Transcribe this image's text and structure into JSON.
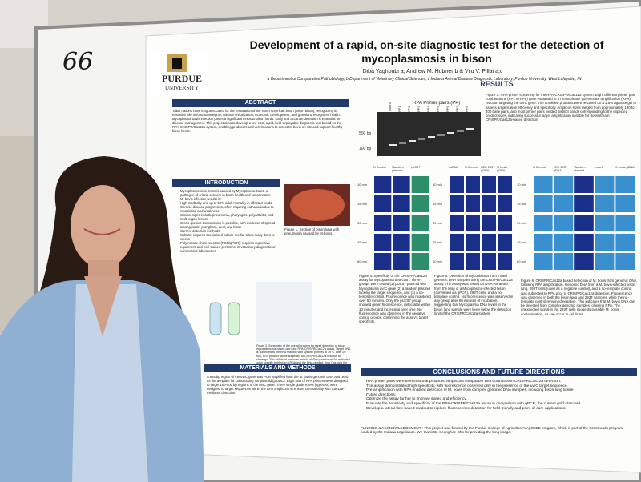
{
  "whiteboard": {
    "number": "66"
  },
  "poster": {
    "logo": {
      "line1": "PURDUE",
      "line2": "UNIVERSITY"
    },
    "title_lines": [
      "Development of a rapid, on-site diagnostic test for the detection of",
      "mycoplasmosis in bison"
    ],
    "authors": "Diba Yaghoubi a, Andrew M. Hubner b & Viju V. Pillai a,c",
    "affiliations": "a Department of Comparative Pathobiology, b Department of Veterinary Clinical Sciences, c Indiana Animal Disease Diagnostic Laboratory, Purdue University, West Lafayette, IN",
    "abstract": {
      "heading": "ABSTRACT",
      "text": "Tribal nations have long advocated for the restoration of the North American bison (Bison bison), recognizing its essential role in food sovereignty, cultural revitalization, economic development, and grassland ecosystem health. Mycoplasma bovis infection poses a significant threat to bison herds. Early and accurate detection is essential for disease management. This project aims to develop a low-cost, rapid, field-deployable diagnostic test based on the RPA-CRISPR/Cas12a system, enabling producers and veterinarians to detect M. bovis on site and support healthy bison herds."
    },
    "introduction": {
      "heading": "INTRODUCTION",
      "bullets": [
        "Mycoplasmosis in bison is caused by Mycoplasma bovis, a pathogen of critical concern in bison health and conservation",
        "M. bovis infection results in:",
        "High morbidity and up to 50% adult mortality in affected herds",
        "Chronic disease progression, often requiring euthanasia due to emaciation and weakness",
        "Clinical signs include pneumonia, pharyngitis, polyarthritis, and multi-organ lesions",
        "Cross-species transmission is possible, with evidence of spread among cattle, pronghorn, deer, and bison",
        "Current detection methods:",
        "Culture: requires specialized culture media; takes many days to weeks",
        "Polymerase chain reaction (PCR/qPCR): requires expensive equipment and well-trained personnel in veterinary diagnostic or commercial laboratories"
      ],
      "figure1_caption": "Figure 1. Section of bison lung with pneumonia caused by M.bovis."
    },
    "figure2_caption": "Figure 2. Schematic of the overall process for rapid detection of bison mycoplasmosis based one-tube RPA-CRISPR/Cas12a assay. Target DNA is subjected to the RPA reaction with specific primers at 39°C. After 20 min, RPA product will be subjected to CRISPR-Cas12a reaction for cleavage. The collateral nuclease activity of Cas proteins will be activated upon specific binding to crRNA and the DNA product, thus Cas cuts the quenched fluorescent reporter (10-20 min). The generated fluorescence signal would be measured under blue light.",
    "methods": {
      "heading": "MATERIALS AND METHODS",
      "text": "A 594 bp region of the uvrC gene was PCR amplified from the M. bovis genomic DNA and used as the template for constructing the plasmid (p-uvrC). Eight sets of RPA primers were designed to target 100-400 bp regions of the uvrC gene. Three single guide RNAs (sgRNAs) were designed to target sequences within the RPA amplicons to ensure compatibility with Cas12a-mediated detection."
    },
    "results": {
      "heading": "RESULTS",
      "gel_title": "RPA Primer pairs (PP)",
      "gel_lanes": [
        "RPA control",
        "PP1",
        "PP2",
        "PP3",
        "PP4",
        "PP5",
        "PP6",
        "PP7",
        "PP8"
      ],
      "gel_markers": [
        "500 bp",
        "100 bp"
      ],
      "figure3_caption": "Figure 3. RPA-primer screening for the RPA-CRISPR/Cas12a system. Eight different primer pair combinations (PP1 to PP8) were evaluated in a recombinase polymerase amplification (RPA) reaction targeting the uvrC gene. The amplified products were resolved on a 1.5% agarose gel to assess amplification efficiency and specificity. Amplicon sizes ranged from approximately 100 to 400 base pairs, and most primer pairs yielded distinct bands corresponding to the expected product sizes, indicating successful target amplification suitable for downstream CRISPR/Cas12a-based detection.",
      "figure4_headers": [
        "N Control",
        "Random plasmid",
        "pUC57"
      ],
      "figure5_headers": [
        "dsDNA",
        "N Control",
        "HEK 293T gDNA",
        "M bovis gDNA"
      ],
      "figure6_headers": [
        "N Control",
        "HEK 293T gDNA",
        "Random plasmid",
        "p-uvrC",
        "M bovis gDNA"
      ],
      "time_labels": [
        "10 min",
        "15 min",
        "30 min",
        "45 min",
        "60 min"
      ],
      "figure4_caption": "Figure 4. Specificity of the CRISPR/Cas12a assay for Mycoplasma detection. Three groups were tested (1) pUC57 plasmid with Mycoplasma uvrC gene (2) a random plasmid lacking the target sequence, and (3) a no-template control. Fluorescence was monitored over 60 minutes. Only the pUC57 group showed green fluorescence, detectable within 10 minutes and increasing over time. No fluorescence was observed in the negative control groups, confirming the assay's target specificity.",
      "figure5_caption": "Figure 5. Detection of Mycoplasma from mixed genomic DNA samples using the CRISPR/Cas12a assay. The assay was tested on DNA extracted from the lung of a Mycoplasma-infected bison (confirmed via qPCR), 293T cells, and a no-template control. No fluorescence was observed in any group after 60 minutes of incubation, suggesting that Mycoplasma DNA levels in the bison lung sample were likely below the detection limit of the CRISPR/Cas12a system.",
      "figure6_caption": "Figure 6. CRISPR/Cas12a based detection of M. bovis from genomic DNA following RPA amplification. Genomic DNA from a M. bovis-infected bison lung, 293T cells (used as a negative control), and a no-template control was subjected to RPA prior to CRISPR/Cas12a detection. Fluorescence was observed in both the bison lung and 293T samples, while the no-template control remained negative. This indicates that M. bovis DNA can be detected from complex genomic samples following RPA. The unexpected signal in the 293T cells suggests possible M. bovis contamination, as can occur in cell lines."
    },
    "conclusions": {
      "heading": "CONCLUSIONS AND FUTURE DIRECTIONS",
      "bullets": [
        "RPA primer pairs were identified that produced amplicons compatible with downstream CRISPR/Cas12a detection.",
        "The assay demonstrated high specificity, with fluorescence observed only in the presence of the uvrC target sequence.",
        "Pre-amplification with RPA enabled detection of M. bovis from complex genomic DNA samples, including bison lung tissue",
        "Future directions:",
        "Optimize the assay further to improve speed and efficiency.",
        "Evaluate the sensitivity and specificity of the RPA-CRISPR/Cas12a assay in comparison with qPCR, the current gold standard",
        "Develop a lateral flow-based readout to replace fluorescence detection for field-friendly and point-of-care applications."
      ]
    },
    "funding": "FUNDING & ACKNOWLEDGEMENT : This project was funded by the Purdue College of Agriculture's AgSEED program, which is part of the Crossroads program funded by the Indiana Legislature. We thank Dr. Seunghee Cho for providing the lung image."
  }
}
